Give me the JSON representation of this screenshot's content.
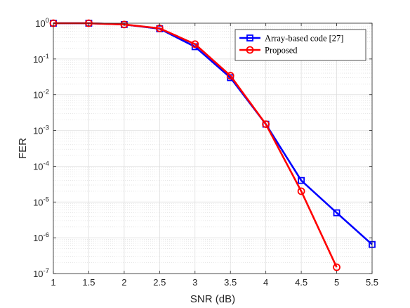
{
  "chart_data": {
    "type": "line",
    "title": "",
    "xlabel": "SNR (dB)",
    "ylabel": "FER",
    "xlim": [
      1,
      5.5
    ],
    "ylim": [
      1e-07,
      1
    ],
    "yscale": "log",
    "grid": true,
    "minor_grid": true,
    "legend_position": "top-right",
    "x_ticks": [
      1,
      1.5,
      2,
      2.5,
      3,
      3.5,
      4,
      4.5,
      5,
      5.5
    ],
    "x_tick_labels": [
      "1",
      "1.5",
      "2",
      "2.5",
      "3",
      "3.5",
      "4",
      "4.5",
      "5",
      "5.5"
    ],
    "y_tick_base": "10",
    "y_tick_exponents": [
      "0",
      "-1",
      "-2",
      "-3",
      "-4",
      "-5",
      "-6",
      "-7"
    ],
    "series": [
      {
        "name": "Array-based code [27]",
        "color": "#0000ff",
        "marker": "square",
        "x": [
          1,
          1.5,
          2,
          2.5,
          3,
          3.5,
          4,
          4.5,
          5,
          5.5
        ],
        "values": [
          1.0,
          1.0,
          0.92,
          0.7,
          0.22,
          0.03,
          0.0015,
          4e-05,
          5e-06,
          6.5e-07
        ]
      },
      {
        "name": "Proposed",
        "color": "#ff0000",
        "marker": "circle",
        "x": [
          1,
          1.5,
          2,
          2.5,
          3,
          3.5,
          4,
          4.5,
          5
        ],
        "values": [
          1.0,
          1.0,
          0.92,
          0.72,
          0.26,
          0.034,
          0.0015,
          2e-05,
          1.5e-07
        ]
      }
    ]
  }
}
